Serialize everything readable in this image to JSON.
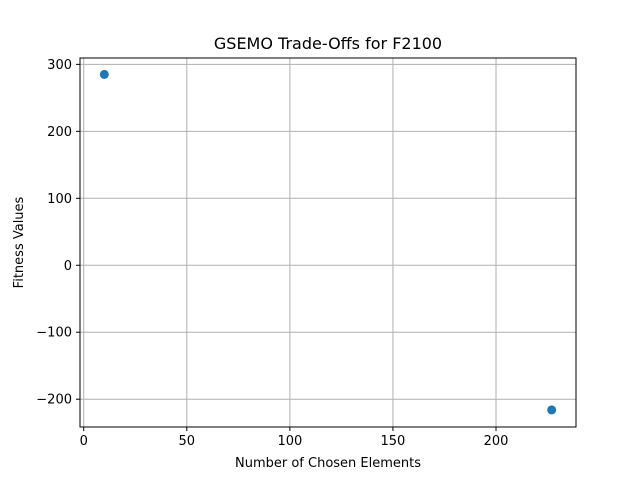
{
  "chart_data": {
    "type": "scatter",
    "title": "GSEMO Trade-Offs for F2100",
    "xlabel": "Number of Chosen Elements",
    "ylabel": "Fitness Values",
    "xlim": [
      -1.8,
      238.8
    ],
    "ylim": [
      -241.5,
      309.5
    ],
    "xticks": [
      0,
      50,
      100,
      150,
      200
    ],
    "xtick_labels": [
      "0",
      "50",
      "100",
      "150",
      "200"
    ],
    "yticks": [
      -200,
      -100,
      0,
      100,
      200,
      300
    ],
    "ytick_labels": [
      "−200",
      "−100",
      "0",
      "100",
      "200",
      "300"
    ],
    "grid": true,
    "marker_color": "#1f77b4",
    "grid_color": "#b0b0b0",
    "series": [
      {
        "x": [
          10,
          227
        ],
        "y": [
          285,
          -216
        ]
      }
    ]
  }
}
